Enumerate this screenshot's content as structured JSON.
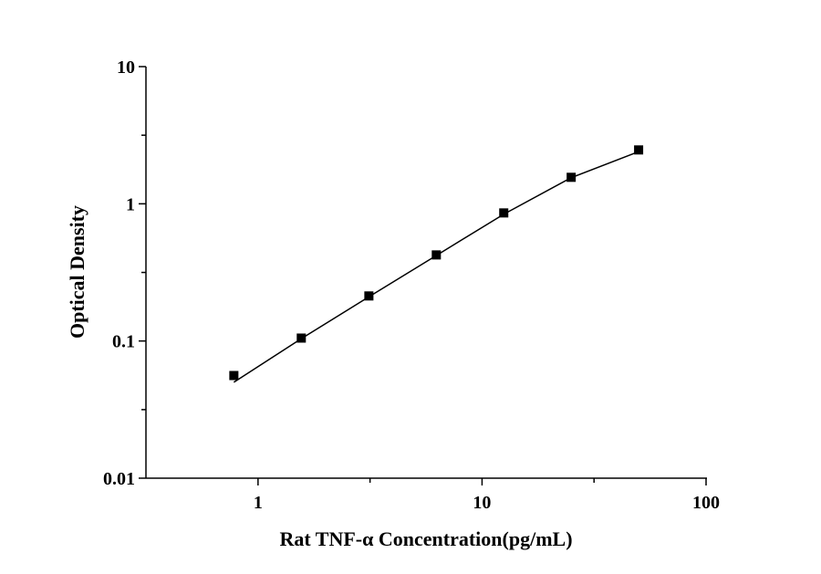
{
  "chart_data": {
    "type": "scatter",
    "x_label": "Rat TNF-α Concentration(pg/mL)",
    "y_label": "Optical Density",
    "x": [
      0.78,
      1.56,
      3.125,
      6.25,
      12.5,
      25,
      50
    ],
    "series": [
      {
        "color": "#000000",
        "marker": "square",
        "values": [
          0.056,
          0.105,
          0.213,
          0.424,
          0.858,
          1.56,
          2.47
        ]
      },
      {
        "color": "#000000",
        "line": true,
        "values": [
          0.05,
          0.104,
          0.21,
          0.42,
          0.84,
          1.55,
          2.4
        ]
      }
    ],
    "xlog": true,
    "ylog": true,
    "xlim": [
      0.316,
      100
    ],
    "ylim": [
      0.01,
      10
    ],
    "xticks": [
      1,
      10,
      100
    ],
    "yticks": [
      0.01,
      0.1,
      1,
      10
    ],
    "xminor": [
      3.162,
      31.62
    ],
    "yminor": [
      0.0316,
      0.316,
      3.162
    ]
  }
}
